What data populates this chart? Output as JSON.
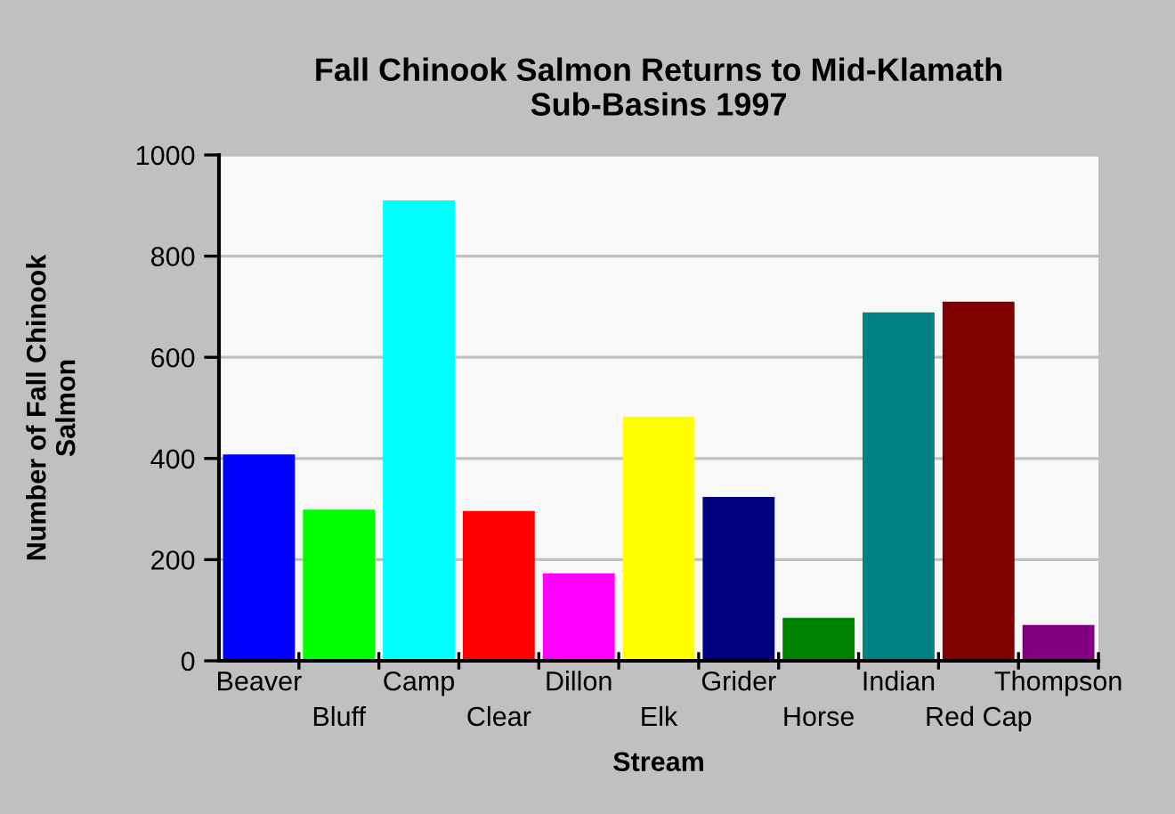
{
  "chart_data": {
    "type": "bar",
    "title": "Fall Chinook Salmon Returns to Mid-Klamath\nSub-Basins 1997",
    "xlabel": "Stream",
    "ylabel": "Number of Fall Chinook\nSalmon",
    "categories": [
      "Beaver",
      "Bluff",
      "Camp",
      "Clear",
      "Dillon",
      "Elk",
      "Grider",
      "Horse",
      "Indian",
      "Red Cap",
      "Thompson"
    ],
    "values": [
      408,
      299,
      910,
      296,
      173,
      482,
      324,
      85,
      689,
      710,
      71
    ],
    "colors": [
      "#0000ff",
      "#00ff00",
      "#00ffff",
      "#ff0000",
      "#ff00ff",
      "#ffff00",
      "#000080",
      "#008000",
      "#008080",
      "#800000",
      "#800080"
    ],
    "ylim": [
      0,
      1000
    ],
    "yticks": [
      0,
      200,
      400,
      600,
      800,
      1000
    ],
    "grid": "y"
  }
}
